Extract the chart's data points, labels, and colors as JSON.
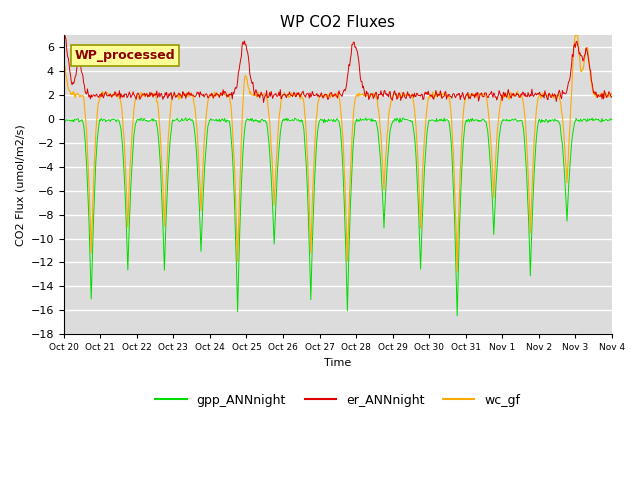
{
  "title": "WP CO2 Fluxes",
  "xlabel": "Time",
  "ylabel": "CO2 Flux (umol/m2/s)",
  "ylim": [
    -18,
    7
  ],
  "yticks": [
    -18,
    -16,
    -14,
    -12,
    -10,
    -8,
    -6,
    -4,
    -2,
    0,
    2,
    4,
    6
  ],
  "bg_color": "#dcdcdc",
  "fig_color": "#ffffff",
  "line_colors": {
    "gpp": "#00dd00",
    "er": "#dd0000",
    "wc": "#ffaa00"
  },
  "legend_label": "WP_processed",
  "legend_fg": "#8b0000",
  "legend_bg": "#ffff99",
  "xtick_labels": [
    "Oct 20",
    "Oct 21",
    "Oct 22",
    "Oct 23",
    "Oct 24",
    "Oct 25",
    "Oct 26",
    "Oct 27",
    "Oct 28",
    "Oct 29",
    "Oct 30",
    "Oct 31",
    "Nov 1",
    "Nov 2",
    "Nov 3",
    "Nov 4"
  ],
  "n_days": 15,
  "pts_per_day": 48,
  "dip_days": [
    0.75,
    1.75,
    2.75,
    3.75,
    4.75,
    5.75,
    6.75,
    7.75,
    8.75,
    9.75,
    10.75,
    11.75,
    12.75,
    13.75
  ],
  "dip_amps": [
    -15,
    -12.5,
    -12.5,
    -11,
    -16,
    -10.5,
    -15,
    -16,
    -9,
    -12.5,
    -16.5,
    -9.5,
    -13,
    -8.5
  ]
}
